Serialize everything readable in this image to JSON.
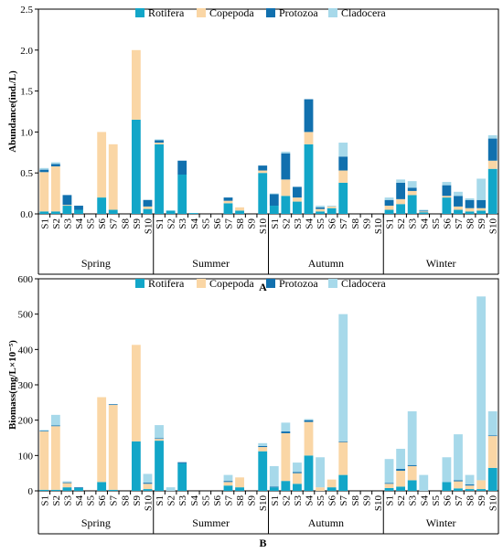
{
  "colors": {
    "Rotifera": "#12A6C8",
    "Copepoda": "#FAD6A5",
    "Protozoa": "#1170AE",
    "Cladocera": "#A7D9EA"
  },
  "chart_data": [
    {
      "type": "bar",
      "stacked": true,
      "panel_label": "A",
      "title": "",
      "ylabel": "Abundance(ind./L)",
      "ylim": [
        0,
        2.5
      ],
      "yticks": [
        "0.0",
        "0.5",
        "1.0",
        "1.5",
        "2.0",
        "2.5"
      ],
      "ytick_values": [
        0,
        0.5,
        1.0,
        1.5,
        2.0,
        2.5
      ],
      "legend": [
        "Rotifera",
        "Copepoda",
        "Protozoa",
        "Cladocera"
      ],
      "legend_position": "top",
      "groups": [
        "Spring",
        "Summer",
        "Autumn",
        "Winter"
      ],
      "sites": [
        "S1",
        "S2",
        "S3",
        "S4",
        "S5",
        "S6",
        "S7",
        "S8",
        "S9",
        "S10"
      ],
      "series": [
        {
          "name": "Rotifera",
          "values": [
            [
              0.03,
              0.03,
              0.1,
              0.05,
              0,
              0.2,
              0.05,
              0,
              1.15,
              0.06
            ],
            [
              0.85,
              0.04,
              0.48,
              0.01,
              0,
              0,
              0.13,
              0.04,
              0,
              0.5
            ],
            [
              0.1,
              0.22,
              0.15,
              0.85,
              0.03,
              0.07,
              0.38,
              0,
              0,
              0
            ],
            [
              0.05,
              0.12,
              0.23,
              0.02,
              0,
              0.2,
              0.05,
              0.03,
              0.04,
              0.55
            ]
          ]
        },
        {
          "name": "Copepoda",
          "values": [
            [
              0.48,
              0.55,
              0.01,
              0,
              0,
              0.8,
              0.8,
              0,
              0.85,
              0.03
            ],
            [
              0.02,
              0,
              0,
              0,
              0,
              0,
              0.03,
              0.04,
              0,
              0.03
            ],
            [
              0,
              0.2,
              0.05,
              0.15,
              0.03,
              0.02,
              0.15,
              0,
              0,
              0
            ],
            [
              0.05,
              0.06,
              0.05,
              0.01,
              0,
              0.02,
              0.04,
              0.04,
              0.03,
              0.1
            ]
          ]
        },
        {
          "name": "Protozoa",
          "values": [
            [
              0.03,
              0.03,
              0.12,
              0.05,
              0,
              0,
              0,
              0,
              0,
              0.08
            ],
            [
              0.03,
              0,
              0.17,
              0,
              0,
              0,
              0.04,
              0,
              0,
              0.06
            ],
            [
              0.14,
              0.32,
              0.13,
              0.4,
              0.02,
              0,
              0.17,
              0,
              0,
              0
            ],
            [
              0.07,
              0.2,
              0.04,
              0.01,
              0,
              0.13,
              0.13,
              0.1,
              0.1,
              0.27
            ]
          ]
        },
        {
          "name": "Cladocera",
          "values": [
            [
              0.02,
              0.02,
              0,
              0,
              0,
              0,
              0,
              0,
              0,
              0
            ],
            [
              0.01,
              0,
              0,
              0,
              0,
              0,
              0,
              0,
              0,
              0
            ],
            [
              0.01,
              0.02,
              0,
              0,
              0.02,
              0.01,
              0.17,
              0,
              0,
              0
            ],
            [
              0.03,
              0.04,
              0.08,
              0.01,
              0,
              0.04,
              0.05,
              0.02,
              0.26,
              0.04
            ]
          ]
        }
      ]
    },
    {
      "type": "bar",
      "stacked": true,
      "panel_label": "B",
      "title": "",
      "ylabel": "Biomass(mg/L×10⁻⁵)",
      "ylim": [
        0,
        600
      ],
      "yticks": [
        "0",
        "100",
        "200",
        "300",
        "400",
        "500",
        "600"
      ],
      "ytick_values": [
        0,
        100,
        200,
        300,
        400,
        500,
        600
      ],
      "legend": [
        "Rotifera",
        "Copepoda",
        "Protozoa",
        "Cladocera"
      ],
      "legend_position": "top",
      "groups": [
        "Spring",
        "Summer",
        "Autumn",
        "Winter"
      ],
      "sites": [
        "S1",
        "S2",
        "S3",
        "S4",
        "S5",
        "S6",
        "S7",
        "S8",
        "S9",
        "S10"
      ],
      "series": [
        {
          "name": "Rotifera",
          "values": [
            [
              3,
              3,
              10,
              8,
              0,
              25,
              3,
              0,
              140,
              5
            ],
            [
              142,
              0,
              78,
              0,
              0,
              0,
              15,
              10,
              0,
              112
            ],
            [
              10,
              28,
              20,
              100,
              0,
              10,
              45,
              0,
              0,
              0
            ],
            [
              8,
              12,
              30,
              0,
              0,
              25,
              7,
              5,
              5,
              65
            ]
          ]
        },
        {
          "name": "Copepoda",
          "values": [
            [
              165,
              180,
              12,
              0,
              0,
              240,
              240,
              0,
              273,
              15
            ],
            [
              5,
              0,
              0,
              0,
              0,
              0,
              10,
              28,
              0,
              12
            ],
            [
              0,
              135,
              30,
              95,
              10,
              22,
              93,
              0,
              0,
              0
            ],
            [
              12,
              45,
              40,
              0,
              0,
              0,
              20,
              10,
              25,
              90
            ]
          ]
        },
        {
          "name": "Protozoa",
          "values": [
            [
              2,
              2,
              2,
              2,
              0,
              0,
              2,
              0,
              0,
              3
            ],
            [
              2,
              0,
              3,
              0,
              0,
              0,
              3,
              0,
              0,
              3
            ],
            [
              2,
              5,
              3,
              5,
              0,
              0,
              2,
              0,
              0,
              0
            ],
            [
              2,
              5,
              3,
              0,
              0,
              0,
              3,
              3,
              0,
              2
            ]
          ]
        },
        {
          "name": "Cladocera",
          "values": [
            [
              2,
              30,
              3,
              0,
              0,
              0,
              0,
              0,
              0,
              25
            ],
            [
              37,
              10,
              0,
              0,
              0,
              0,
              17,
              0,
              0,
              8
            ],
            [
              58,
              25,
              27,
              3,
              85,
              0,
              360,
              0,
              0,
              0
            ],
            [
              68,
              57,
              152,
              45,
              0,
              70,
              130,
              27,
              520,
              68
            ]
          ]
        }
      ]
    }
  ]
}
